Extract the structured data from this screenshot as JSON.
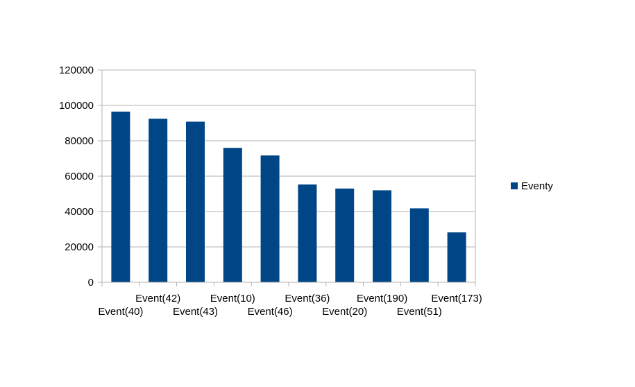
{
  "chart_data": {
    "type": "bar",
    "categories": [
      "Event(40)",
      "Event(42)",
      "Event(43)",
      "Event(10)",
      "Event(46)",
      "Event(36)",
      "Event(20)",
      "Event(190)",
      "Event(51)",
      "Event(173)"
    ],
    "series": [
      {
        "name": "Eventy",
        "color": "#004586",
        "values": [
          96500,
          92500,
          90800,
          76000,
          71700,
          55300,
          53000,
          52000,
          41800,
          28200
        ]
      }
    ],
    "y_ticks": [
      "0",
      "20000",
      "40000",
      "60000",
      "80000",
      "100000",
      "120000"
    ],
    "ylim": [
      0,
      120000
    ],
    "grid": true,
    "legend_position": "right",
    "title": "",
    "xlabel": "",
    "ylabel": ""
  }
}
